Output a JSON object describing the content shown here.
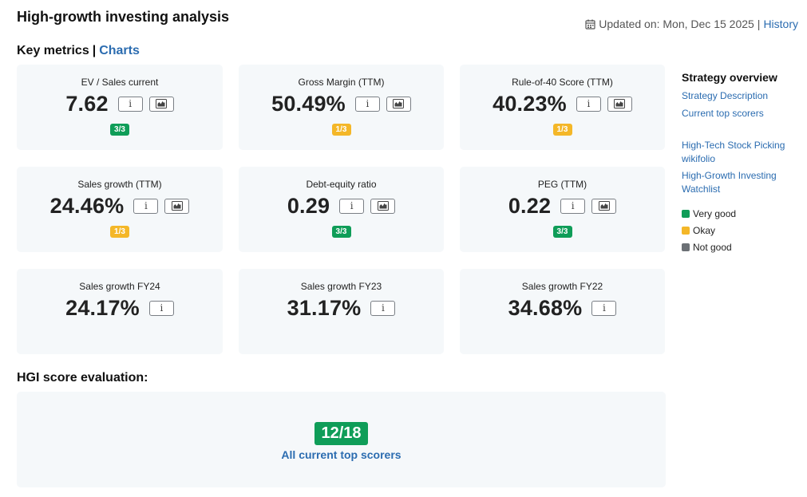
{
  "header": {
    "title": "High-growth investing analysis",
    "updated_label": "Updated on: Mon, Dec 15 2025",
    "separator": "|",
    "history_link": "History"
  },
  "key_metrics": {
    "title": "Key metrics",
    "separator": "|",
    "charts_link": "Charts"
  },
  "cards": [
    {
      "label": "EV / Sales current",
      "value": "7.62",
      "info": "i",
      "has_chart": true,
      "badge": "3/3",
      "badge_color": "#0f9d58"
    },
    {
      "label": "Gross Margin (TTM)",
      "value": "50.49%",
      "info": "i",
      "has_chart": true,
      "badge": "1/3",
      "badge_color": "#f4b728"
    },
    {
      "label": "Rule-of-40 Score (TTM)",
      "value": "40.23%",
      "info": "i",
      "has_chart": true,
      "badge": "1/3",
      "badge_color": "#f4b728"
    },
    {
      "label": "Sales growth (TTM)",
      "value": "24.46%",
      "info": "i",
      "has_chart": true,
      "badge": "1/3",
      "badge_color": "#f4b728"
    },
    {
      "label": "Debt-equity ratio",
      "value": "0.29",
      "info": "i",
      "has_chart": true,
      "badge": "3/3",
      "badge_color": "#0f9d58"
    },
    {
      "label": "PEG (TTM)",
      "value": "0.22",
      "info": "i",
      "has_chart": true,
      "badge": "3/3",
      "badge_color": "#0f9d58"
    },
    {
      "label": "Sales growth FY24",
      "value": "24.17%",
      "info": "i",
      "has_chart": false
    },
    {
      "label": "Sales growth FY23",
      "value": "31.17%",
      "info": "i",
      "has_chart": false
    },
    {
      "label": "Sales growth FY22",
      "value": "34.68%",
      "info": "i",
      "has_chart": false
    }
  ],
  "sidebar": {
    "title": "Strategy overview",
    "links": [
      "Strategy Description",
      "Current top scorers",
      "High-Tech Stock Picking wikifolio",
      "High-Growth Investing Watchlist"
    ],
    "legend": [
      {
        "label": "Very good",
        "color": "#0f9d58"
      },
      {
        "label": "Okay",
        "color": "#f4b728"
      },
      {
        "label": "Not good",
        "color": "#6b7075"
      }
    ]
  },
  "hgi": {
    "title": "HGI score evaluation:",
    "score": "12/18",
    "score_color": "#0f9d58",
    "link": "All current top scorers"
  },
  "colors": {
    "accent": "#2b6cb0",
    "card_bg": "#f5f8fa"
  }
}
